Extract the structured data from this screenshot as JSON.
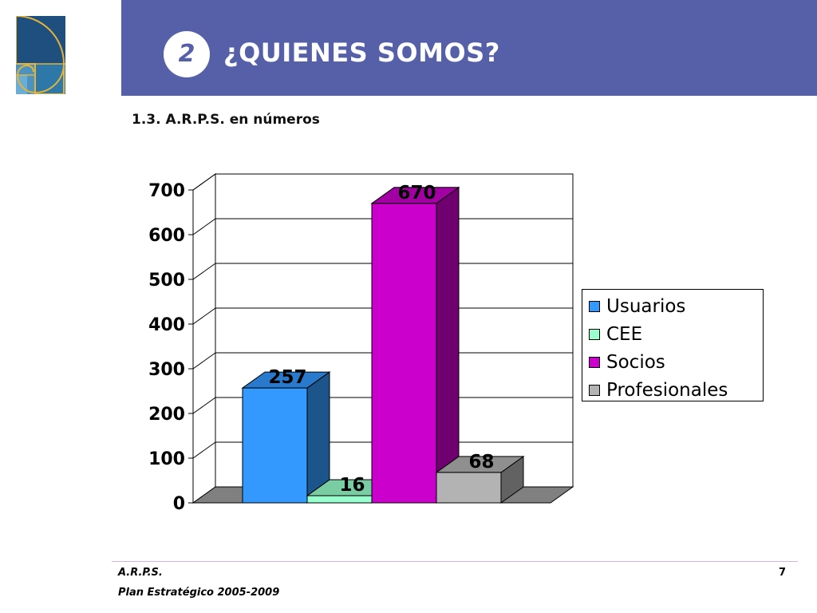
{
  "header": {
    "section_number": "2",
    "title": "¿QUIENES SOMOS?"
  },
  "subtitle": "1.3. A.R.P.S. en números",
  "footer": {
    "org": "A.R.P.S.",
    "plan": "Plan Estratégico 2005-2009",
    "page": "7"
  },
  "colors": {
    "header_band": "#5560a8",
    "logo_bg": "#1f4f7e",
    "logo_gold": "#e3b33a"
  },
  "chart_data": {
    "type": "bar",
    "style": "3d-column",
    "categories": [
      "Usuarios",
      "CEE",
      "Socios",
      "Profesionales"
    ],
    "values": [
      257,
      16,
      670,
      68
    ],
    "data_labels": [
      "257",
      "16",
      "670",
      "68"
    ],
    "colors": [
      "#3399ff",
      "#99ffcc",
      "#cc00cc",
      "#b3b3b3"
    ],
    "ylim": [
      0,
      700
    ],
    "yticks": [
      0,
      100,
      200,
      300,
      400,
      500,
      600,
      700
    ],
    "ytick_labels": [
      "0",
      "100",
      "200",
      "300",
      "400",
      "500",
      "600",
      "700"
    ],
    "grid": true,
    "legend": {
      "position": "right",
      "entries": [
        "Usuarios",
        "CEE",
        "Socios",
        "Profesionales"
      ]
    }
  }
}
